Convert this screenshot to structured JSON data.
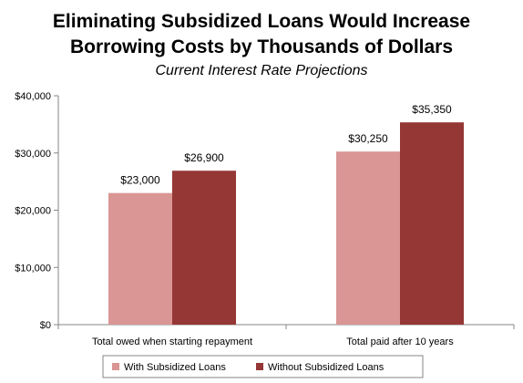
{
  "colors": {
    "series_1": "#d99694",
    "series_2": "#953735",
    "axis": "#868686"
  },
  "chart_data": {
    "type": "bar",
    "title_lines": [
      "Eliminating Subsidized Loans Would Increase",
      "Borrowing Costs by Thousands of Dollars"
    ],
    "subtitle": "Current Interest Rate Projections",
    "categories": [
      "Total owed when starting repayment",
      "Total paid after 10 years"
    ],
    "series": [
      {
        "name": "With Subsidized Loans",
        "values": [
          23000,
          30250
        ],
        "labels": [
          "$23,000",
          "$30,250"
        ]
      },
      {
        "name": "Without Subsidized Loans",
        "values": [
          26900,
          35350
        ],
        "labels": [
          "$26,900",
          "$35,350"
        ]
      }
    ],
    "y_ticks": [
      {
        "value": 0,
        "label": "$0"
      },
      {
        "value": 10000,
        "label": "$10,000"
      },
      {
        "value": 20000,
        "label": "$20,000"
      },
      {
        "value": 30000,
        "label": "$30,000"
      },
      {
        "value": 40000,
        "label": "$40,000"
      }
    ],
    "ylim": [
      0,
      40000
    ],
    "grid": false,
    "legend_position": "bottom",
    "xlabel": "",
    "ylabel": ""
  }
}
